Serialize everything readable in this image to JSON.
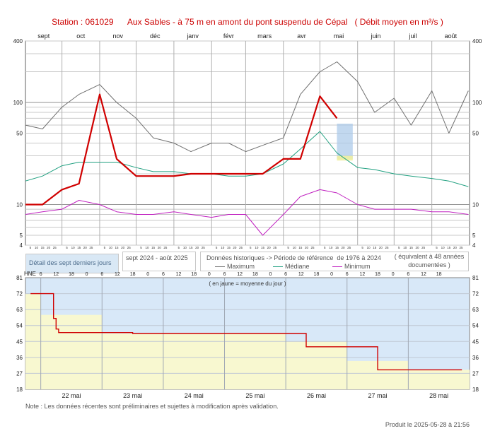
{
  "title": {
    "station": "Station : 061029",
    "name": "Aux Sables - à 75 m en amont du pont suspendu de Cépal",
    "unit": "( Débit moyen en m³/s )"
  },
  "colors": {
    "current": "#d00000",
    "maximum": "#707070",
    "median": "#20a080",
    "minimum": "#c020c0",
    "detail_bg": "#d8e8f8",
    "detail_daily": "#f8f8d0",
    "highlight": "#a8c8e8"
  },
  "top_panel": {
    "months": [
      "sept",
      "oct",
      "nov",
      "déc",
      "janv",
      "févr",
      "mars",
      "avr",
      "mai",
      "juin",
      "juil",
      "août"
    ],
    "y_ticks": [
      "400",
      "100",
      "50",
      "10",
      "5",
      "4"
    ],
    "day_ticks": "5 10 15 20 25"
  },
  "boxes": {
    "detail": "Détail des sept derniers jours",
    "period": "sept 2024 - août 2025",
    "hist_title": "Données historiques -> Période de référence  de 1976 à 2024",
    "hist_note": "( équivalent à 48 années documentées )",
    "max_label": "Maximum",
    "median_label": "Médiane",
    "min_label": "Minimum"
  },
  "bottom_panel": {
    "hne": "HNE",
    "hours": [
      "6",
      "12",
      "18",
      "0",
      "6",
      "12",
      "18",
      "0",
      "6",
      "12",
      "18",
      "0",
      "6",
      "12",
      "18",
      "0",
      "6",
      "12",
      "18",
      "0",
      "6",
      "12",
      "18",
      "0",
      "6",
      "12",
      "18"
    ],
    "y_ticks": [
      "81",
      "72",
      "63",
      "54",
      "45",
      "36",
      "27",
      "18"
    ],
    "days": [
      "22 mai",
      "23 mai",
      "24 mai",
      "25 mai",
      "26 mai",
      "27 mai",
      "28 mai"
    ],
    "annotation": "( en jaune = moyenne du jour )"
  },
  "note": "Note : Les données récentes sont préliminaires et sujettes à modification après validation.",
  "produced": "Produit le 2025-05-28 à 21:56",
  "chart_data": [
    {
      "type": "line",
      "title": "Station : 061029 - Aux Sables - à 75 m en amont du pont suspendu de Cépal ( Débit moyen en m³/s )",
      "x_categories": [
        "sept",
        "oct",
        "nov",
        "déc",
        "janv",
        "févr",
        "mars",
        "avr",
        "mai",
        "juin",
        "juil",
        "août"
      ],
      "y_scale": "log",
      "ylim": [
        4,
        400
      ],
      "x": [
        "09-01",
        "09-15",
        "10-01",
        "10-15",
        "11-01",
        "11-15",
        "12-01",
        "12-15",
        "01-01",
        "01-15",
        "02-01",
        "02-15",
        "03-01",
        "03-15",
        "04-01",
        "04-15",
        "05-01",
        "05-15",
        "06-01",
        "06-15",
        "07-01",
        "07-15",
        "08-01",
        "08-15",
        "08-31"
      ],
      "series": [
        {
          "name": "Maximum",
          "values": [
            60,
            55,
            90,
            120,
            150,
            100,
            70,
            45,
            40,
            33,
            40,
            40,
            33,
            38,
            45,
            120,
            200,
            250,
            160,
            80,
            110,
            60,
            130,
            50,
            130
          ]
        },
        {
          "name": "Médiane",
          "values": [
            17,
            19,
            24,
            26,
            26,
            26,
            23,
            21,
            21,
            20,
            20,
            19,
            19,
            20,
            25,
            35,
            52,
            32,
            23,
            22,
            20,
            19,
            18,
            17,
            15
          ]
        },
        {
          "name": "Minimum",
          "values": [
            8,
            8.5,
            9,
            11,
            10,
            8.5,
            8,
            8,
            8.5,
            8,
            7.5,
            8,
            8,
            5,
            8,
            12,
            14,
            13,
            10,
            9,
            9,
            9,
            8.5,
            8.5,
            8
          ]
        },
        {
          "name": "2024-2025",
          "values": [
            10,
            10,
            14,
            16,
            120,
            28,
            19,
            19,
            19,
            20,
            20,
            20,
            20,
            20,
            28,
            28,
            115,
            70,
            null,
            null,
            null,
            null,
            null,
            null,
            null
          ]
        }
      ]
    },
    {
      "type": "line",
      "title": "Détail des sept derniers jours",
      "x_categories": [
        "22 mai",
        "23 mai",
        "24 mai",
        "25 mai",
        "26 mai",
        "27 mai",
        "28 mai"
      ],
      "ylim": [
        18,
        81
      ],
      "x": [
        "05-21 20h",
        "05-22 03h",
        "05-22 05h",
        "05-22 06h",
        "05-22 07h",
        "05-23 00h",
        "05-23 12h",
        "05-24 00h",
        "05-25 00h",
        "05-25 12h",
        "05-25 20h",
        "05-26 00h",
        "05-26 07h",
        "05-26 08h",
        "05-26 12h",
        "05-27 00h",
        "05-27 06h",
        "05-27 12h",
        "05-28 00h",
        "05-28 12h",
        "05-28 21h"
      ],
      "series": [
        {
          "name": "Débit",
          "values": [
            72,
            72,
            58,
            52,
            50,
            50,
            49.5,
            49.5,
            49.5,
            49.5,
            49.5,
            49.5,
            49.5,
            42,
            42,
            42,
            42,
            29,
            29,
            29,
            29
          ]
        }
      ],
      "daily_mean": [
        {
          "day": "21 mai",
          "value": 72
        },
        {
          "day": "22 mai",
          "value": 60
        },
        {
          "day": "23 mai",
          "value": 49.5
        },
        {
          "day": "24 mai",
          "value": 49.5
        },
        {
          "day": "25 mai",
          "value": 49.5
        },
        {
          "day": "26 mai",
          "value": 45
        },
        {
          "day": "27 mai",
          "value": 34
        },
        {
          "day": "28 mai",
          "value": 29
        }
      ]
    }
  ]
}
